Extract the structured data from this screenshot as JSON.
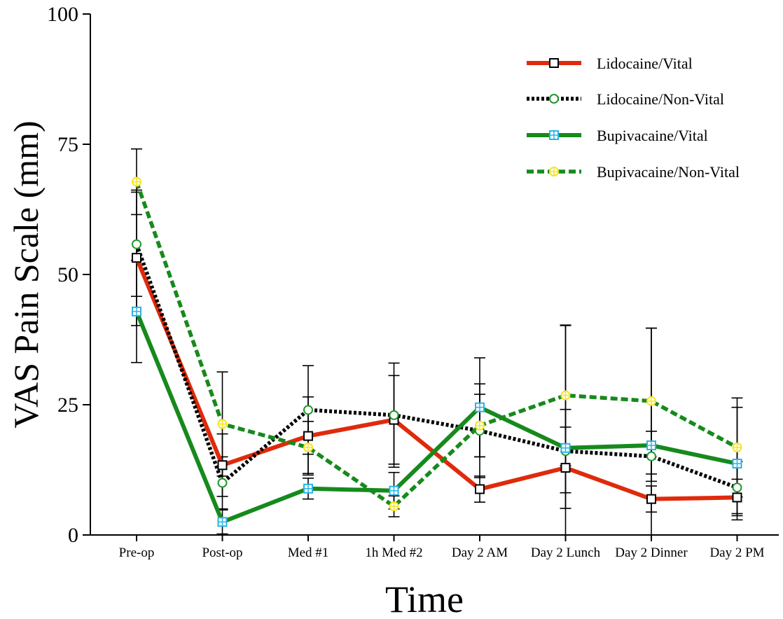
{
  "chart_data": {
    "type": "line",
    "xlabel": "Time",
    "ylabel": "VAS Pain Scale (mm)",
    "ylim": [
      0,
      100
    ],
    "yticks": [
      0,
      25,
      50,
      75,
      100
    ],
    "categories": [
      "Pre-op",
      "Post-op",
      "Med #1",
      "1h Med #2",
      "Day 2 AM",
      "Day 2 Lunch",
      "Day 2 Dinner",
      "Day 2 PM"
    ],
    "legend_position": "top-right",
    "grid": false,
    "series": [
      {
        "name": "Lidocaine/Vital",
        "values": [
          53.2,
          13.4,
          19.0,
          22.1,
          8.8,
          12.9,
          6.9,
          7.2
        ],
        "error": [
          13.0,
          6.0,
          7.5,
          8.5,
          2.5,
          7.8,
          2.5,
          3.5
        ],
        "color": "#e02a0c",
        "line": "solid",
        "marker": "square",
        "marker_color": "#000000"
      },
      {
        "name": "Lidocaine/Non-Vital",
        "values": [
          55.8,
          10.0,
          24.0,
          23.0,
          20.0,
          16.1,
          15.1,
          9.1
        ],
        "error": [
          10.0,
          5.0,
          8.5,
          10.0,
          9.0,
          8.0,
          4.8,
          5.0
        ],
        "color": "#000000",
        "line": "dotted",
        "marker": "circle",
        "marker_color": "#1f9a2a"
      },
      {
        "name": "Bupivacaine/Vital",
        "values": [
          42.9,
          2.5,
          8.9,
          8.5,
          24.5,
          16.7,
          17.2,
          13.7
        ],
        "error": [
          9.8,
          2.3,
          2.0,
          3.5,
          9.5,
          23.5,
          22.5,
          10.8
        ],
        "color": "#168a1c",
        "line": "solid",
        "marker": "square-cross",
        "marker_color": "#29b3e6"
      },
      {
        "name": "Bupivacaine/Non-Vital",
        "values": [
          67.8,
          21.3,
          16.8,
          5.5,
          21.0,
          26.8,
          25.7,
          16.8
        ],
        "error": [
          6.3,
          10.0,
          5.0,
          2.0,
          6.0,
          13.5,
          14.0,
          9.5
        ],
        "color": "#168a1c",
        "line": "dashed",
        "marker": "circle-cross",
        "marker_color": "#f5e51c"
      }
    ]
  }
}
